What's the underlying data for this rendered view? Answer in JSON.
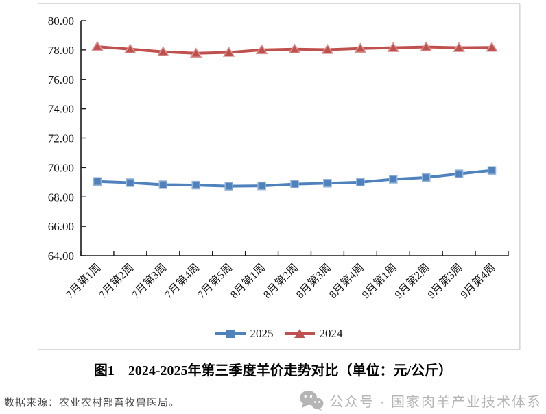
{
  "chart_data": {
    "type": "line",
    "title": "图1　2024-2025年第三季度羊价走势对比（单位：元/公斤）",
    "xlabel": "",
    "ylabel": "",
    "ylim": [
      64,
      80
    ],
    "ytick_step": 2,
    "grid": false,
    "legend_position": "bottom",
    "axis_color": "#1a1a1a",
    "categories": [
      "7月第1周",
      "7月第2周",
      "7月第3周",
      "7月第4周",
      "7月第5周",
      "8月第1周",
      "8月第2周",
      "8月第3周",
      "8月第4周",
      "9月第1周",
      "9月第2周",
      "9月第3周",
      "9月第4周"
    ],
    "series": [
      {
        "name": "2025",
        "color": "#4F81BD",
        "marker_edge": "#95B3D7",
        "marker": "square",
        "values": [
          69.05,
          68.97,
          68.83,
          68.8,
          68.73,
          68.75,
          68.87,
          68.93,
          69.0,
          69.2,
          69.32,
          69.57,
          69.8
        ]
      },
      {
        "name": "2024",
        "color": "#C0504D",
        "marker_edge": "#D99694",
        "marker": "triangle",
        "values": [
          78.22,
          78.05,
          77.87,
          77.77,
          77.83,
          78.0,
          78.05,
          78.02,
          78.1,
          78.15,
          78.2,
          78.15,
          78.17
        ]
      }
    ]
  },
  "footer": {
    "source": "数据来源：农业农村部畜牧兽医局。",
    "watermark": {
      "icon": "wechat-icon",
      "text": "公众号 · 国家肉羊产业技术体系",
      "color": "#b5b5b5"
    }
  }
}
